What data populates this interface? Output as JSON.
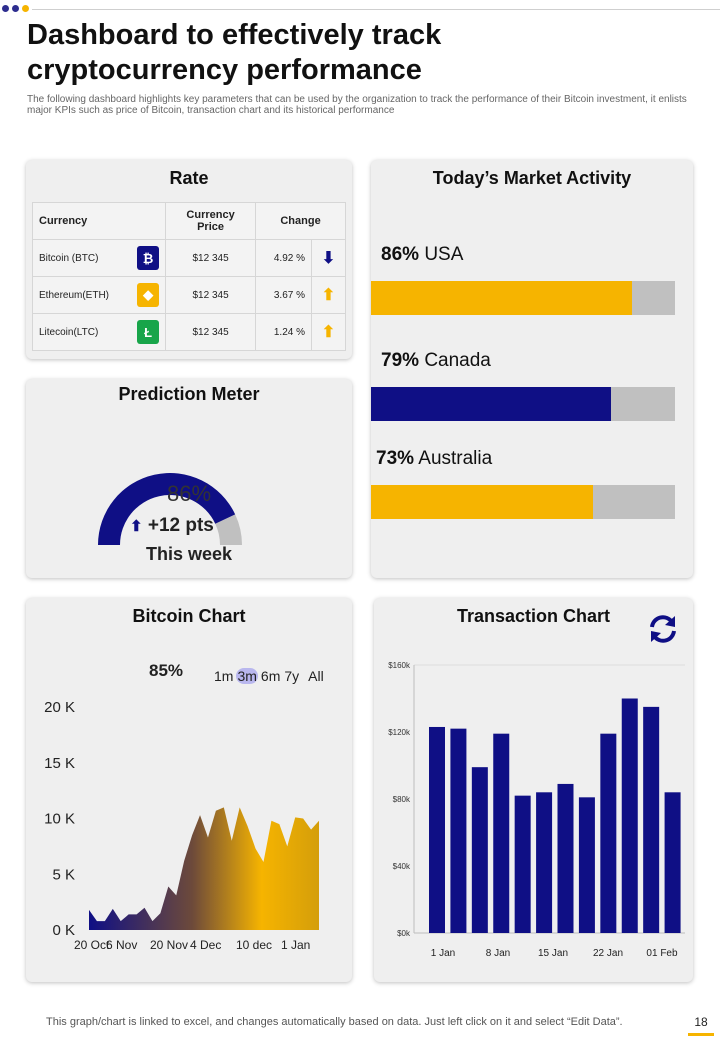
{
  "page": {
    "title": "Dashboard to effectively track cryptocurrency performance",
    "subtitle": "The following dashboard highlights key parameters that can be used by the organization to track the performance of their Bitcoin investment, it enlists major KPIs  such as price of Bitcoin, transaction chart and its historical performance",
    "footer": "This graph/chart is linked to excel,  and changes automatically based on data. Just left click on it and select “Edit Data”.",
    "page_number": "18"
  },
  "colors": {
    "navy": "#0f0f85",
    "yellow": "#f6b400",
    "gray_track": "#c0c0c0",
    "panel": "#efefef",
    "green": "#18a54a",
    "dot_blue": "#2d2d8f",
    "dot_yellow": "#f6b400"
  },
  "rate": {
    "title": "Rate",
    "headers": {
      "currency": "Currency",
      "price": "Currency Price",
      "change": "Change"
    },
    "rows": [
      {
        "name": "Bitcoin (BTC)",
        "icon": "bitcoin-icon",
        "glyph": "₿",
        "badge_color": "#0f0f85",
        "price": "$12 345",
        "change": "4.92 %",
        "direction": "down",
        "arrow": "⬇",
        "arrow_color": "#0f0f85"
      },
      {
        "name": "Ethereum(ETH)",
        "icon": "ethereum-icon",
        "glyph": "◆",
        "badge_color": "#f6b400",
        "price": "$12 345",
        "change": "3.67 %",
        "direction": "up",
        "arrow": "⬆",
        "arrow_color": "#f6b400"
      },
      {
        "name": "Litecoin(LTC)",
        "icon": "litecoin-icon",
        "glyph": "Ł",
        "badge_color": "#18a54a",
        "price": "$12 345",
        "change": "1.24 %",
        "direction": "up",
        "arrow": "⬆",
        "arrow_color": "#f6b400"
      }
    ]
  },
  "market": {
    "title": "Today’s Market Activity",
    "items": [
      {
        "pct": "86%",
        "country": "USA",
        "value": 86,
        "color": "#f6b400"
      },
      {
        "pct": "79%",
        "country": "Canada",
        "value": 79,
        "color": "#0f0f85"
      },
      {
        "pct": "73%",
        "country": "Australia",
        "value": 73,
        "color": "#f6b400"
      }
    ]
  },
  "prediction": {
    "title": "Prediction Meter",
    "value": 86,
    "value_text": "86%",
    "delta_arrow": "⬆",
    "delta_text": "+12 pts",
    "period_text": "This week"
  },
  "bitcoin_chart": {
    "title": "Bitcoin Chart",
    "pct": "85%",
    "ranges": [
      "1m",
      "3m",
      "6m",
      "7y",
      "All"
    ],
    "selected_range": "3m"
  },
  "transaction_chart": {
    "title": "Transaction Chart",
    "refresh_icon": "refresh-icon"
  },
  "chart_data": [
    {
      "type": "area",
      "title": "Bitcoin Chart",
      "ylim": [
        0,
        20000
      ],
      "y_ticks": [
        "0 K",
        "5 K",
        "10 K",
        "15 K",
        "20 K"
      ],
      "y_tick_values": [
        0,
        5000,
        10000,
        15000,
        20000
      ],
      "x_tick_labels": [
        "20 Oct",
        "6 Nov",
        "20 Nov",
        "4 Dec",
        "10 dec",
        "1 Jan"
      ],
      "values": [
        1800,
        800,
        800,
        1900,
        800,
        1400,
        1400,
        2000,
        800,
        1500,
        3900,
        3100,
        6200,
        8500,
        10300,
        8300,
        10700,
        11000,
        8000,
        11000,
        9300,
        7300,
        6100,
        9800,
        9500,
        7500,
        10100,
        10000,
        9000,
        9800
      ]
    },
    {
      "type": "bar",
      "title": "Transaction Chart",
      "ylim": [
        0,
        160000
      ],
      "y_ticks": [
        "$0k",
        "$40k",
        "$80k",
        "$120k",
        "$160k"
      ],
      "y_tick_values": [
        0,
        40000,
        80000,
        120000,
        160000
      ],
      "x_tick_labels": [
        "1 Jan",
        "8 Jan",
        "15 Jan",
        "22 Jan",
        "01 Feb"
      ],
      "values": [
        123000,
        122000,
        99000,
        119000,
        82000,
        84000,
        89000,
        81000,
        119000,
        140000,
        135000,
        84000
      ]
    }
  ]
}
